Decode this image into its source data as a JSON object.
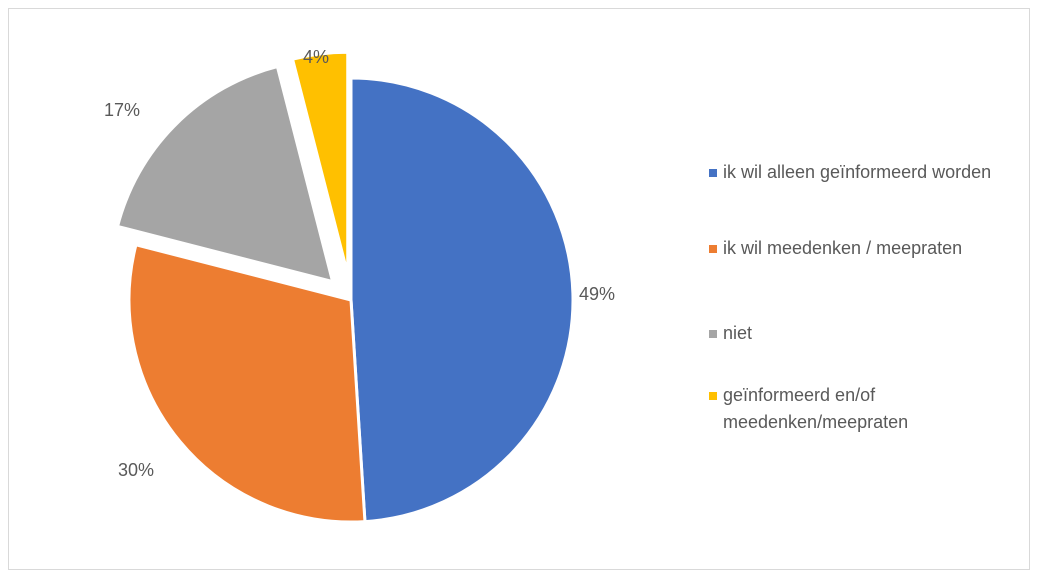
{
  "chart_data": {
    "type": "pie",
    "title": "",
    "categories": [
      "ik wil alleen geïnformeerd worden",
      "ik wil meedenken / meepraten",
      "niet",
      "geïnformeerd en/of meedenken/meepraten"
    ],
    "values": [
      49,
      30,
      17,
      4
    ],
    "labels": [
      "49%",
      "30%",
      "17%",
      "4%"
    ],
    "colors": [
      "#4472C4",
      "#ED7D31",
      "#A5A5A5",
      "#FFC000"
    ],
    "exploded": [
      false,
      false,
      true,
      true
    ],
    "legend_position": "right"
  }
}
